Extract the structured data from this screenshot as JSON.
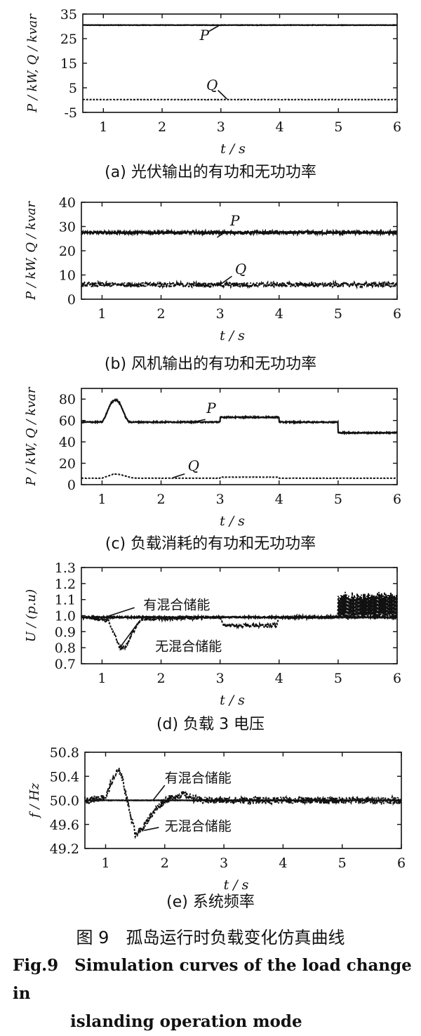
{
  "chart_data": [
    {
      "type": "line",
      "panel": "a",
      "caption": "光伏输出的有功和无功功率",
      "xlabel": "t / s",
      "ylabel": "P / kW, Q / kvar",
      "xlim": [
        0.65,
        6
      ],
      "ylim": [
        -5,
        35
      ],
      "xticks": [
        1,
        2,
        3,
        4,
        5,
        6
      ],
      "yticks": [
        -5,
        5,
        15,
        25,
        35
      ],
      "grid": false,
      "series": [
        {
          "name": "P",
          "style": "solid",
          "noise": 0.08,
          "x": [
            0.65,
            6
          ],
          "y": [
            30.5,
            30.5
          ]
        },
        {
          "name": "Q",
          "style": "dotted",
          "noise": 0.05,
          "x": [
            0.65,
            6
          ],
          "y": [
            0.2,
            0.2
          ]
        }
      ]
    },
    {
      "type": "line",
      "panel": "b",
      "caption": "风机输出的有功和无功功率",
      "xlabel": "t / s",
      "ylabel": "P / kW, Q / kvar",
      "xlim": [
        0.65,
        6
      ],
      "ylim": [
        0,
        40
      ],
      "xticks": [
        1,
        2,
        3,
        4,
        5,
        6
      ],
      "yticks": [
        0,
        10,
        20,
        30,
        40
      ],
      "grid": false,
      "series": [
        {
          "name": "P",
          "style": "solid",
          "noise": 0.6,
          "x": [
            0.65,
            6
          ],
          "y": [
            27.5,
            27.5
          ]
        },
        {
          "name": "Q",
          "style": "dotted",
          "noise": 1.0,
          "x": [
            0.65,
            6
          ],
          "y": [
            6,
            6
          ]
        }
      ]
    },
    {
      "type": "line",
      "panel": "c",
      "caption": "负载消耗的有功和无功功率",
      "xlabel": "t / s",
      "ylabel": "P / kW, Q / kvar",
      "xlim": [
        0.65,
        6
      ],
      "ylim": [
        0,
        90
      ],
      "xticks": [
        1,
        2,
        3,
        4,
        5,
        6
      ],
      "yticks": [
        0,
        20,
        40,
        60,
        80
      ],
      "grid": false,
      "series": [
        {
          "name": "P",
          "style": "solid",
          "noise": 0.5,
          "x": [
            0.65,
            1.0,
            1.05,
            1.1,
            1.15,
            1.2,
            1.25,
            1.3,
            1.35,
            1.4,
            1.45,
            1.5,
            2.0,
            3.0,
            3.001,
            3.999,
            4.0,
            4.999,
            5.0,
            6.0
          ],
          "y": [
            58.5,
            58.5,
            63,
            70,
            76,
            79,
            79,
            76,
            70,
            63,
            59,
            58.5,
            58.5,
            58.5,
            63,
            63,
            58.5,
            58.5,
            48.5,
            48.5
          ]
        },
        {
          "name": "Q",
          "style": "dotted",
          "noise": 0.1,
          "x": [
            0.65,
            1.0,
            1.1,
            1.2,
            1.3,
            1.4,
            1.5,
            1.6,
            3.0,
            3.001,
            4.0,
            4.001,
            6.0
          ],
          "y": [
            6,
            6,
            8,
            10,
            9.5,
            8,
            6.5,
            6,
            6,
            7,
            7,
            6,
            6
          ]
        }
      ]
    },
    {
      "type": "line",
      "panel": "d",
      "caption": "负载 3 电压",
      "xlabel": "t / s",
      "ylabel": "U / (p.u)",
      "xlim": [
        0.65,
        6
      ],
      "ylim": [
        0.7,
        1.3
      ],
      "xticks": [
        1,
        2,
        3,
        4,
        5,
        6
      ],
      "yticks": [
        0.7,
        0.8,
        0.9,
        1.0,
        1.1,
        1.2,
        1.3
      ],
      "grid": false,
      "series": [
        {
          "name": "有混合储能",
          "style": "solid",
          "noise": 0.004,
          "x": [
            0.65,
            6
          ],
          "y": [
            0.99,
            0.99
          ]
        },
        {
          "name": "无混合储能",
          "style": "dotted",
          "noise": 0.012,
          "x": [
            0.65,
            1.1,
            1.2,
            1.3,
            1.4,
            1.5,
            1.6,
            1.7,
            3.0,
            3.05,
            3.95,
            4.0,
            4.99,
            5.0,
            6.0
          ],
          "y": [
            0.99,
            0.97,
            0.89,
            0.8,
            0.8,
            0.88,
            0.95,
            0.98,
            0.99,
            0.94,
            0.94,
            0.99,
            0.99,
            1.06,
            1.06
          ],
          "bands": [
            {
              "x0": 5.0,
              "x1": 6.0,
              "amplitude": 0.08
            }
          ]
        }
      ]
    },
    {
      "type": "line",
      "panel": "e",
      "caption": "系统频率",
      "xlabel": "t / s",
      "ylabel": "f / Hz",
      "xlim": [
        0.65,
        6
      ],
      "ylim": [
        49.2,
        50.8
      ],
      "xticks": [
        1,
        2,
        3,
        4,
        5,
        6
      ],
      "yticks": [
        49.2,
        49.6,
        50.0,
        50.4,
        50.8
      ],
      "grid": false,
      "series": [
        {
          "name": "有混合储能",
          "style": "solid",
          "noise": 0.004,
          "x": [
            0.65,
            6
          ],
          "y": [
            50.0,
            50.0
          ]
        },
        {
          "name": "无混合储能",
          "style": "dotted",
          "noise": 0.06,
          "x": [
            0.65,
            1.0,
            1.1,
            1.2,
            1.25,
            1.3,
            1.4,
            1.5,
            1.6,
            1.8,
            2.0,
            2.3,
            2.6,
            6.0
          ],
          "y": [
            50.0,
            50.05,
            50.3,
            50.48,
            50.48,
            50.3,
            49.85,
            49.45,
            49.5,
            49.8,
            50.0,
            50.1,
            50.0,
            50.0
          ]
        }
      ]
    }
  ],
  "figure": {
    "title_zh": "图 9　孤岛运行时负载变化仿真曲线",
    "title_en_line1": "Fig.9　Simulation curves of the load change in",
    "title_en_line2": "islanding operation mode"
  },
  "panel_labels": [
    "(a)",
    "(b)",
    "(c)",
    "(d)",
    "(e)"
  ]
}
